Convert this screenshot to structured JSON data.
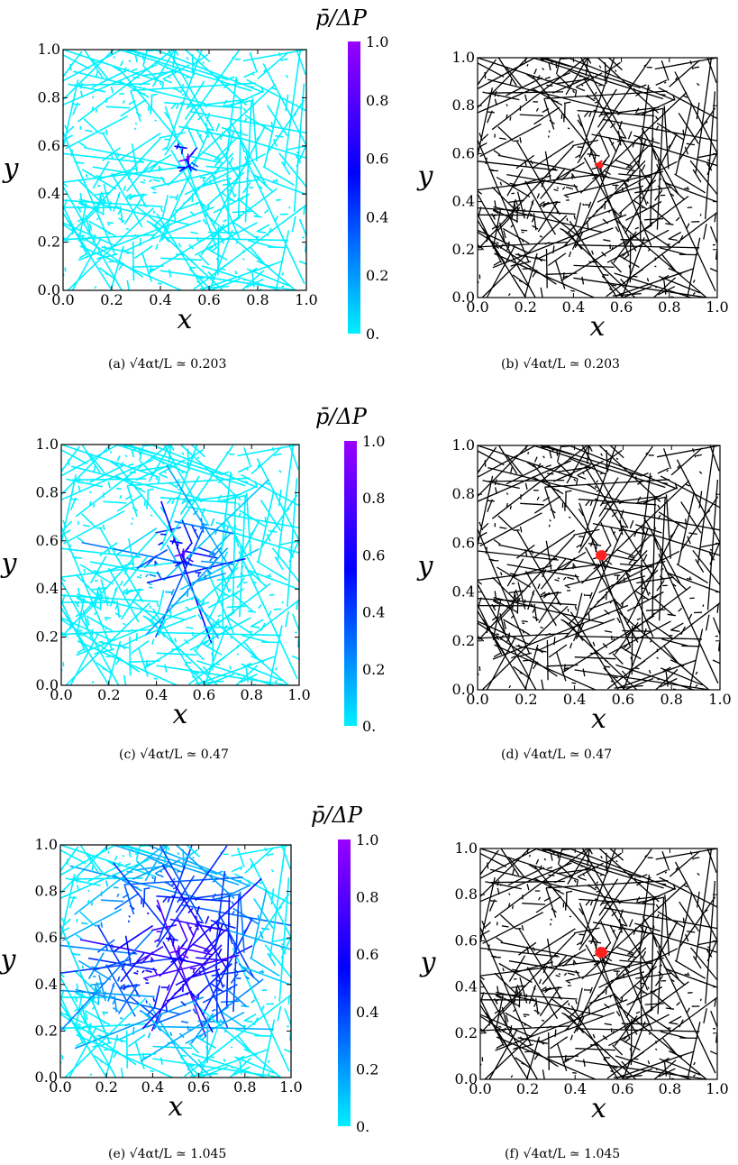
{
  "colorbar": {
    "title": "p̄/ΔP",
    "ticks": [
      "1.0",
      "0.8",
      "0.6",
      "0.4",
      "0.2",
      "0."
    ],
    "colors": {
      "low": "#00f0ff",
      "mid": "#0000ff",
      "high": "#9900ff"
    }
  },
  "captions": [
    "(a) √4αt/L ≃ 0.203",
    "(b) √4αt/L ≃ 0.203",
    "(c) √4αt/L ≃ 0.47",
    "(d) √4αt/L ≃ 0.47",
    "(e) √4αt/L ≃ 1.045",
    "(f) √4αt/L ≃ 1.045"
  ],
  "chart_data": [
    {
      "type": "scatter",
      "panel": "a",
      "style": "pressure",
      "xlabel": "x",
      "ylabel": "y",
      "xlim": [
        0,
        1
      ],
      "ylim": [
        0,
        1
      ],
      "x_ticks": [
        "0.0",
        "0.2",
        "0.4",
        "0.6",
        "0.8",
        "1.0"
      ],
      "y_ticks": [
        "0.0",
        "0.2",
        "0.4",
        "0.6",
        "0.8",
        "1.0"
      ],
      "source": {
        "x": 0.5,
        "y": 0.55
      },
      "front_radius": 0.035
    },
    {
      "type": "scatter",
      "panel": "b",
      "style": "binary",
      "xlabel": "x",
      "ylabel": "y",
      "xlim": [
        0,
        1
      ],
      "ylim": [
        0,
        1
      ],
      "x_ticks": [
        "0.0",
        "0.2",
        "0.4",
        "0.6",
        "0.8",
        "1.0"
      ],
      "y_ticks": [
        "0.0",
        "0.2",
        "0.4",
        "0.6",
        "0.8",
        "1.0"
      ],
      "source": {
        "x": 0.5,
        "y": 0.55
      },
      "front_radius": 0.02
    },
    {
      "type": "scatter",
      "panel": "c",
      "style": "pressure",
      "xlabel": "x",
      "ylabel": "y",
      "xlim": [
        0,
        1
      ],
      "ylim": [
        0,
        1
      ],
      "x_ticks": [
        "0.0",
        "0.2",
        "0.4",
        "0.6",
        "0.8",
        "1.0"
      ],
      "y_ticks": [
        "0.0",
        "0.2",
        "0.4",
        "0.6",
        "0.8",
        "1.0"
      ],
      "source": {
        "x": 0.5,
        "y": 0.55
      },
      "front_radius": 0.09
    },
    {
      "type": "scatter",
      "panel": "d",
      "style": "binary",
      "xlabel": "x",
      "ylabel": "y",
      "xlim": [
        0,
        1
      ],
      "ylim": [
        0,
        1
      ],
      "x_ticks": [
        "0.0",
        "0.2",
        "0.4",
        "0.6",
        "0.8",
        "1.0"
      ],
      "y_ticks": [
        "0.0",
        "0.2",
        "0.4",
        "0.6",
        "0.8",
        "1.0"
      ],
      "source": {
        "x": 0.5,
        "y": 0.55
      },
      "front_radius": 0.04
    },
    {
      "type": "scatter",
      "panel": "e",
      "style": "pressure",
      "xlabel": "x",
      "ylabel": "y",
      "xlim": [
        0,
        1
      ],
      "ylim": [
        0,
        1
      ],
      "x_ticks": [
        "0.0",
        "0.2",
        "0.4",
        "0.6",
        "0.8",
        "1.0"
      ],
      "y_ticks": [
        "0.0",
        "0.2",
        "0.4",
        "0.6",
        "0.8",
        "1.0"
      ],
      "source": {
        "x": 0.5,
        "y": 0.55
      },
      "front_radius": 0.2
    },
    {
      "type": "scatter",
      "panel": "f",
      "style": "binary",
      "xlabel": "x",
      "ylabel": "y",
      "xlim": [
        0,
        1
      ],
      "ylim": [
        0,
        1
      ],
      "x_ticks": [
        "0.0",
        "0.2",
        "0.4",
        "0.6",
        "0.8",
        "1.0"
      ],
      "y_ticks": [
        "0.0",
        "0.2",
        "0.4",
        "0.6",
        "0.8",
        "1.0"
      ],
      "source": {
        "x": 0.5,
        "y": 0.55
      },
      "front_radius": 0.05
    }
  ]
}
